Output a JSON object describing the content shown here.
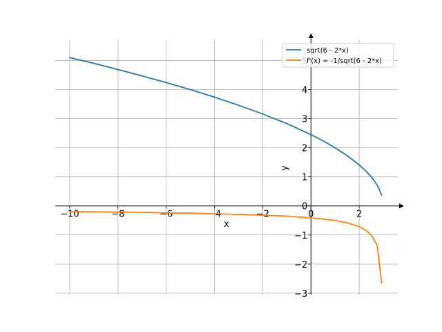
{
  "chart_data": {
    "type": "line",
    "xlabel": "x",
    "ylabel": "y",
    "xlim": [
      -10.6,
      3.6
    ],
    "ylim": [
      -3.05,
      5.7
    ],
    "grid": true,
    "legend_position": "top-right",
    "x_ticks": [
      -10,
      -8,
      -6,
      -4,
      -2,
      0,
      2
    ],
    "x_tick_labels": [
      "−10",
      "−8",
      "−6",
      "−4",
      "−2",
      "0",
      "2"
    ],
    "y_ticks": [
      -3,
      -2,
      -1,
      0,
      1,
      2,
      3,
      4,
      5
    ],
    "y_tick_labels": [
      "−3",
      "−2",
      "−1",
      "0",
      "1",
      "2",
      "3",
      "4",
      "5"
    ],
    "series": [
      {
        "name": "sqrt(6 - 2*x)",
        "color": "#1f77b4",
        "x": [
          -10,
          -9,
          -8,
          -7,
          -6,
          -5,
          -4,
          -3,
          -2,
          -1,
          0,
          0.5,
          1,
          1.5,
          2,
          2.3,
          2.5,
          2.7,
          2.8,
          2.93
        ],
        "y": [
          5.1,
          4.9,
          4.69,
          4.47,
          4.24,
          4.0,
          3.74,
          3.46,
          3.16,
          2.83,
          2.45,
          2.24,
          2.0,
          1.73,
          1.41,
          1.18,
          1.0,
          0.77,
          0.63,
          0.37
        ]
      },
      {
        "name": "f'(x) = -1/sqrt(6 - 2*x)",
        "color": "#ff7f0e",
        "x": [
          -10,
          -9,
          -8,
          -7,
          -6,
          -5,
          -4,
          -3,
          -2,
          -1,
          0,
          0.5,
          1,
          1.5,
          2,
          2.3,
          2.5,
          2.7,
          2.75,
          2.93
        ],
        "y": [
          -0.2,
          -0.2,
          -0.21,
          -0.22,
          -0.24,
          -0.25,
          -0.27,
          -0.29,
          -0.32,
          -0.35,
          -0.41,
          -0.45,
          -0.5,
          -0.58,
          -0.71,
          -0.85,
          -1.0,
          -1.29,
          -1.39,
          -2.65
        ]
      }
    ]
  }
}
